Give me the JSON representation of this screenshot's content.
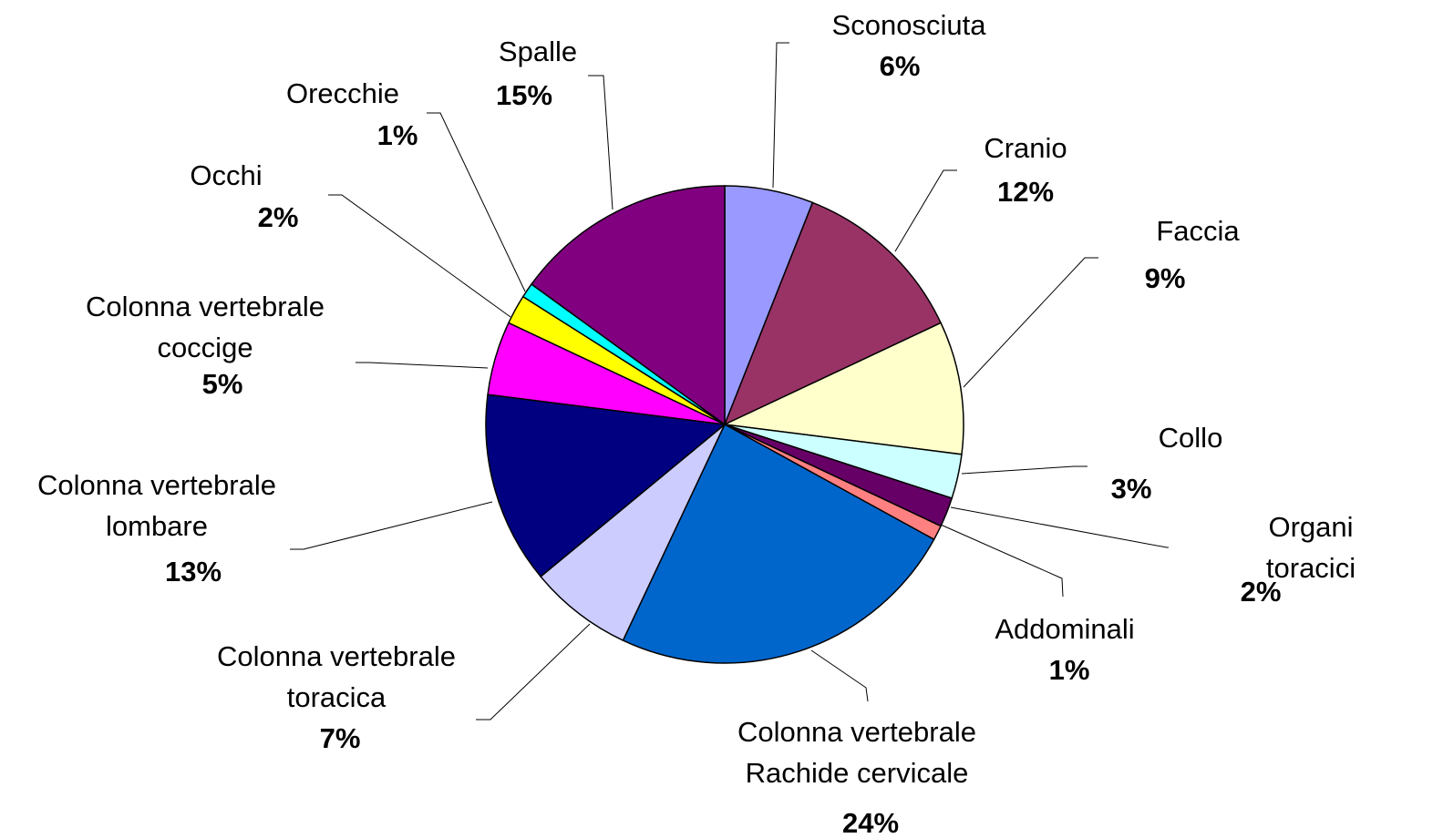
{
  "chart_data": {
    "type": "pie",
    "categories": [
      "Sconosciuta",
      "Cranio",
      "Faccia",
      "Collo",
      "Organi toracici",
      "Addominali",
      "Colonna vertebrale\nRachide cervicale",
      "Colonna vertebrale\ntoracica",
      "Colonna vertebrale\nlombare",
      "Colonna vertebrale\ncoccige",
      "Occhi",
      "Orecchie",
      "Spalle"
    ],
    "values": [
      6,
      12,
      9,
      3,
      2,
      1,
      24,
      7,
      13,
      5,
      2,
      1,
      15
    ],
    "value_labels": [
      "6%",
      "12%",
      "9%",
      "3%",
      "2%",
      "1%",
      "24%",
      "7%",
      "13%",
      "5%",
      "2%",
      "1%",
      "15%"
    ],
    "colors": [
      "#9999ff",
      "#993366",
      "#ffffcc",
      "#ccffff",
      "#660066",
      "#ff8080",
      "#0066cc",
      "#ccccff",
      "#000080",
      "#ff00ff",
      "#ffff00",
      "#00ffff",
      "#800080"
    ]
  }
}
